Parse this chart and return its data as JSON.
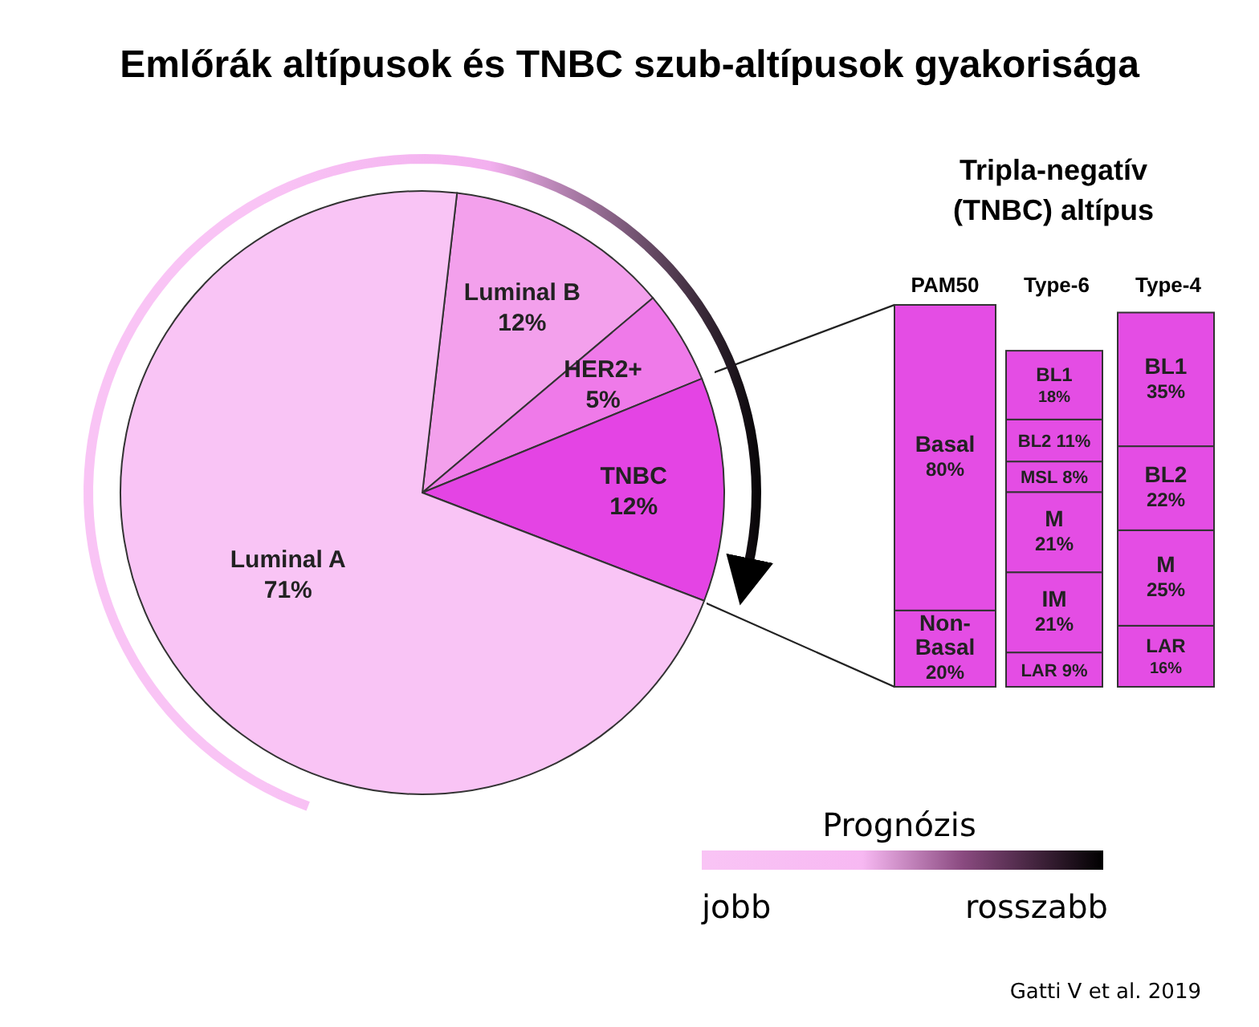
{
  "chart_data": [
    {
      "type": "pie",
      "title": "Emlőrák altípusok és TNBC szub-altípusok gyakorisága",
      "categories": [
        "Luminal B",
        "HER2+",
        "TNBC",
        "Luminal A"
      ],
      "values": [
        12,
        5,
        12,
        71
      ],
      "colors": [
        "#f3a0ec",
        "#ef7ae9",
        "#e444e4",
        "#f9c4f5"
      ],
      "value_labels": [
        "12%",
        "5%",
        "12%",
        "71%"
      ],
      "annotations": [
        "Prognózis",
        "jobb",
        "rosszabb",
        "Gatti V et al. 2019"
      ]
    },
    {
      "type": "bar",
      "stacked": true,
      "title": "Tripla-negatív (TNBC) altípus",
      "categories": [
        "PAM50",
        "Type-6",
        "Type-4"
      ],
      "series": [
        {
          "name": "Non-Basal",
          "color": "#e44de4",
          "values": [
            20,
            null,
            null
          ],
          "value_labels": [
            "20%",
            null,
            null
          ]
        },
        {
          "name": "Basal",
          "color": "#e44de4",
          "values": [
            80,
            null,
            null
          ],
          "value_labels": [
            "80%",
            null,
            null
          ]
        },
        {
          "name": "LAR",
          "color": "#e44de4",
          "values": [
            null,
            9,
            16
          ],
          "value_labels": [
            null,
            "9%",
            "16%"
          ]
        },
        {
          "name": "IM",
          "color": "#e44de4",
          "values": [
            null,
            21,
            null
          ],
          "value_labels": [
            null,
            "21%",
            null
          ]
        },
        {
          "name": "M",
          "color": "#e44de4",
          "values": [
            null,
            21,
            25
          ],
          "value_labels": [
            null,
            "21%",
            "25%"
          ]
        },
        {
          "name": "MSL",
          "color": "#e44de4",
          "values": [
            null,
            8,
            null
          ],
          "value_labels": [
            null,
            "8%",
            null
          ]
        },
        {
          "name": "BL2",
          "color": "#e44de4",
          "values": [
            null,
            11,
            22
          ],
          "value_labels": [
            null,
            "11%",
            "22%"
          ]
        },
        {
          "name": "BL1",
          "color": "#e44de4",
          "values": [
            null,
            18,
            35
          ],
          "value_labels": [
            null,
            "18%",
            "35%"
          ]
        }
      ]
    }
  ]
}
